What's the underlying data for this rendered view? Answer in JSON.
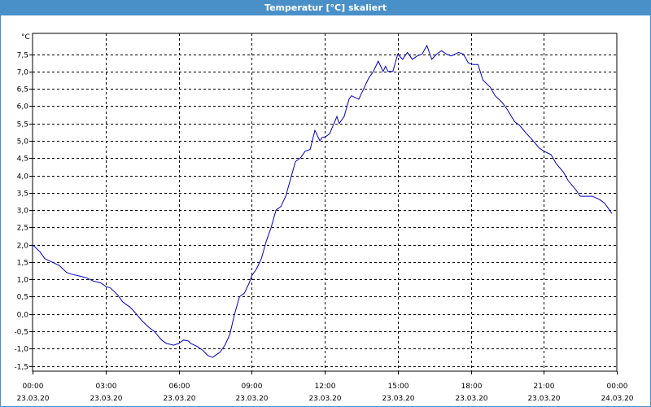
{
  "window": {
    "title": "Temperatur [°C] skaliert"
  },
  "chart_data": {
    "type": "line",
    "title": "Temperatur [°C] skaliert",
    "ylabel": "°C",
    "ylim": [
      -1.65,
      8.1
    ],
    "yticks": [
      -1.5,
      -1.0,
      -0.5,
      0.0,
      0.5,
      1.0,
      1.5,
      2.0,
      2.5,
      3.0,
      3.5,
      4.0,
      4.5,
      5.0,
      5.5,
      6.0,
      6.5,
      7.0,
      7.5
    ],
    "ytick_labels": [
      "-1,5",
      "-1,0",
      "-0,5",
      "0,0",
      "0,5",
      "1,0",
      "1,5",
      "2,0",
      "2,5",
      "3,0",
      "3,5",
      "4,0",
      "4,5",
      "5,0",
      "5,5",
      "6,0",
      "6,5",
      "7,0",
      "7,5"
    ],
    "x_unit": "hours",
    "xlim": [
      0,
      24
    ],
    "xticks": [
      0,
      3,
      6,
      9,
      12,
      15,
      18,
      21,
      24
    ],
    "xtick_labels": [
      [
        "00:00",
        "23.03.20"
      ],
      [
        "03:00",
        "23.03.20"
      ],
      [
        "06:00",
        "23.03.20"
      ],
      [
        "09:00",
        "23.03.20"
      ],
      [
        "12:00",
        "23.03.20"
      ],
      [
        "15:00",
        "23.03.20"
      ],
      [
        "18:00",
        "23.03.20"
      ],
      [
        "21:00",
        "23.03.20"
      ],
      [
        "00:00",
        "24.03.20"
      ]
    ],
    "grid": true,
    "series": [
      {
        "color": "#0000c0",
        "x": [
          0.0,
          0.3,
          0.5,
          0.8,
          1.1,
          1.4,
          1.6,
          1.9,
          2.2,
          2.5,
          2.8,
          3.0,
          3.2,
          3.5,
          3.7,
          4.0,
          4.2,
          4.5,
          4.8,
          5.0,
          5.3,
          5.5,
          5.8,
          6.0,
          6.2,
          6.4,
          6.5,
          6.8,
          7.0,
          7.2,
          7.4,
          7.5,
          7.7,
          7.9,
          8.1,
          8.3,
          8.5,
          8.7,
          8.9,
          9.0,
          9.2,
          9.4,
          9.6,
          9.8,
          10.0,
          10.2,
          10.4,
          10.6,
          10.8,
          11.0,
          11.2,
          11.4,
          11.6,
          11.8,
          11.9,
          12.0,
          12.2,
          12.5,
          12.6,
          12.8,
          13.0,
          13.1,
          13.4,
          13.6,
          13.8,
          14.0,
          14.2,
          14.4,
          14.5,
          14.6,
          14.8,
          15.0,
          15.2,
          15.4,
          15.6,
          15.8,
          16.0,
          16.2,
          16.4,
          16.6,
          16.8,
          17.0,
          17.2,
          17.5,
          17.7,
          17.9,
          18.1,
          18.3,
          18.5,
          18.8,
          19.0,
          19.3,
          19.5,
          19.8,
          20.0,
          20.3,
          20.5,
          20.8,
          21.0,
          21.3,
          21.5,
          21.8,
          22.0,
          22.3,
          22.5,
          22.8,
          23.0,
          23.3,
          23.5,
          23.8
        ],
        "y": [
          2.0,
          1.8,
          1.6,
          1.5,
          1.4,
          1.2,
          1.15,
          1.1,
          1.05,
          0.95,
          0.9,
          0.8,
          0.75,
          0.55,
          0.35,
          0.2,
          0.05,
          -0.2,
          -0.4,
          -0.5,
          -0.75,
          -0.85,
          -0.9,
          -0.85,
          -0.75,
          -0.78,
          -0.85,
          -0.95,
          -1.05,
          -1.2,
          -1.25,
          -1.2,
          -1.1,
          -0.9,
          -0.6,
          0.0,
          0.5,
          0.6,
          0.9,
          1.1,
          1.3,
          1.6,
          2.1,
          2.5,
          3.0,
          3.1,
          3.4,
          3.9,
          4.4,
          4.5,
          4.7,
          4.75,
          5.3,
          5.0,
          5.1,
          5.1,
          5.2,
          5.7,
          5.5,
          5.7,
          6.2,
          6.3,
          6.2,
          6.5,
          6.8,
          7.0,
          7.3,
          7.0,
          7.15,
          7.0,
          7.0,
          7.5,
          7.35,
          7.55,
          7.35,
          7.45,
          7.5,
          7.75,
          7.35,
          7.5,
          7.6,
          7.5,
          7.45,
          7.55,
          7.5,
          7.25,
          7.2,
          7.2,
          6.75,
          6.55,
          6.3,
          6.1,
          5.9,
          5.55,
          5.45,
          5.2,
          5.05,
          4.8,
          4.7,
          4.6,
          4.35,
          4.1,
          3.85,
          3.6,
          3.4,
          3.4,
          3.4,
          3.3,
          3.2,
          2.9
        ]
      }
    ]
  }
}
